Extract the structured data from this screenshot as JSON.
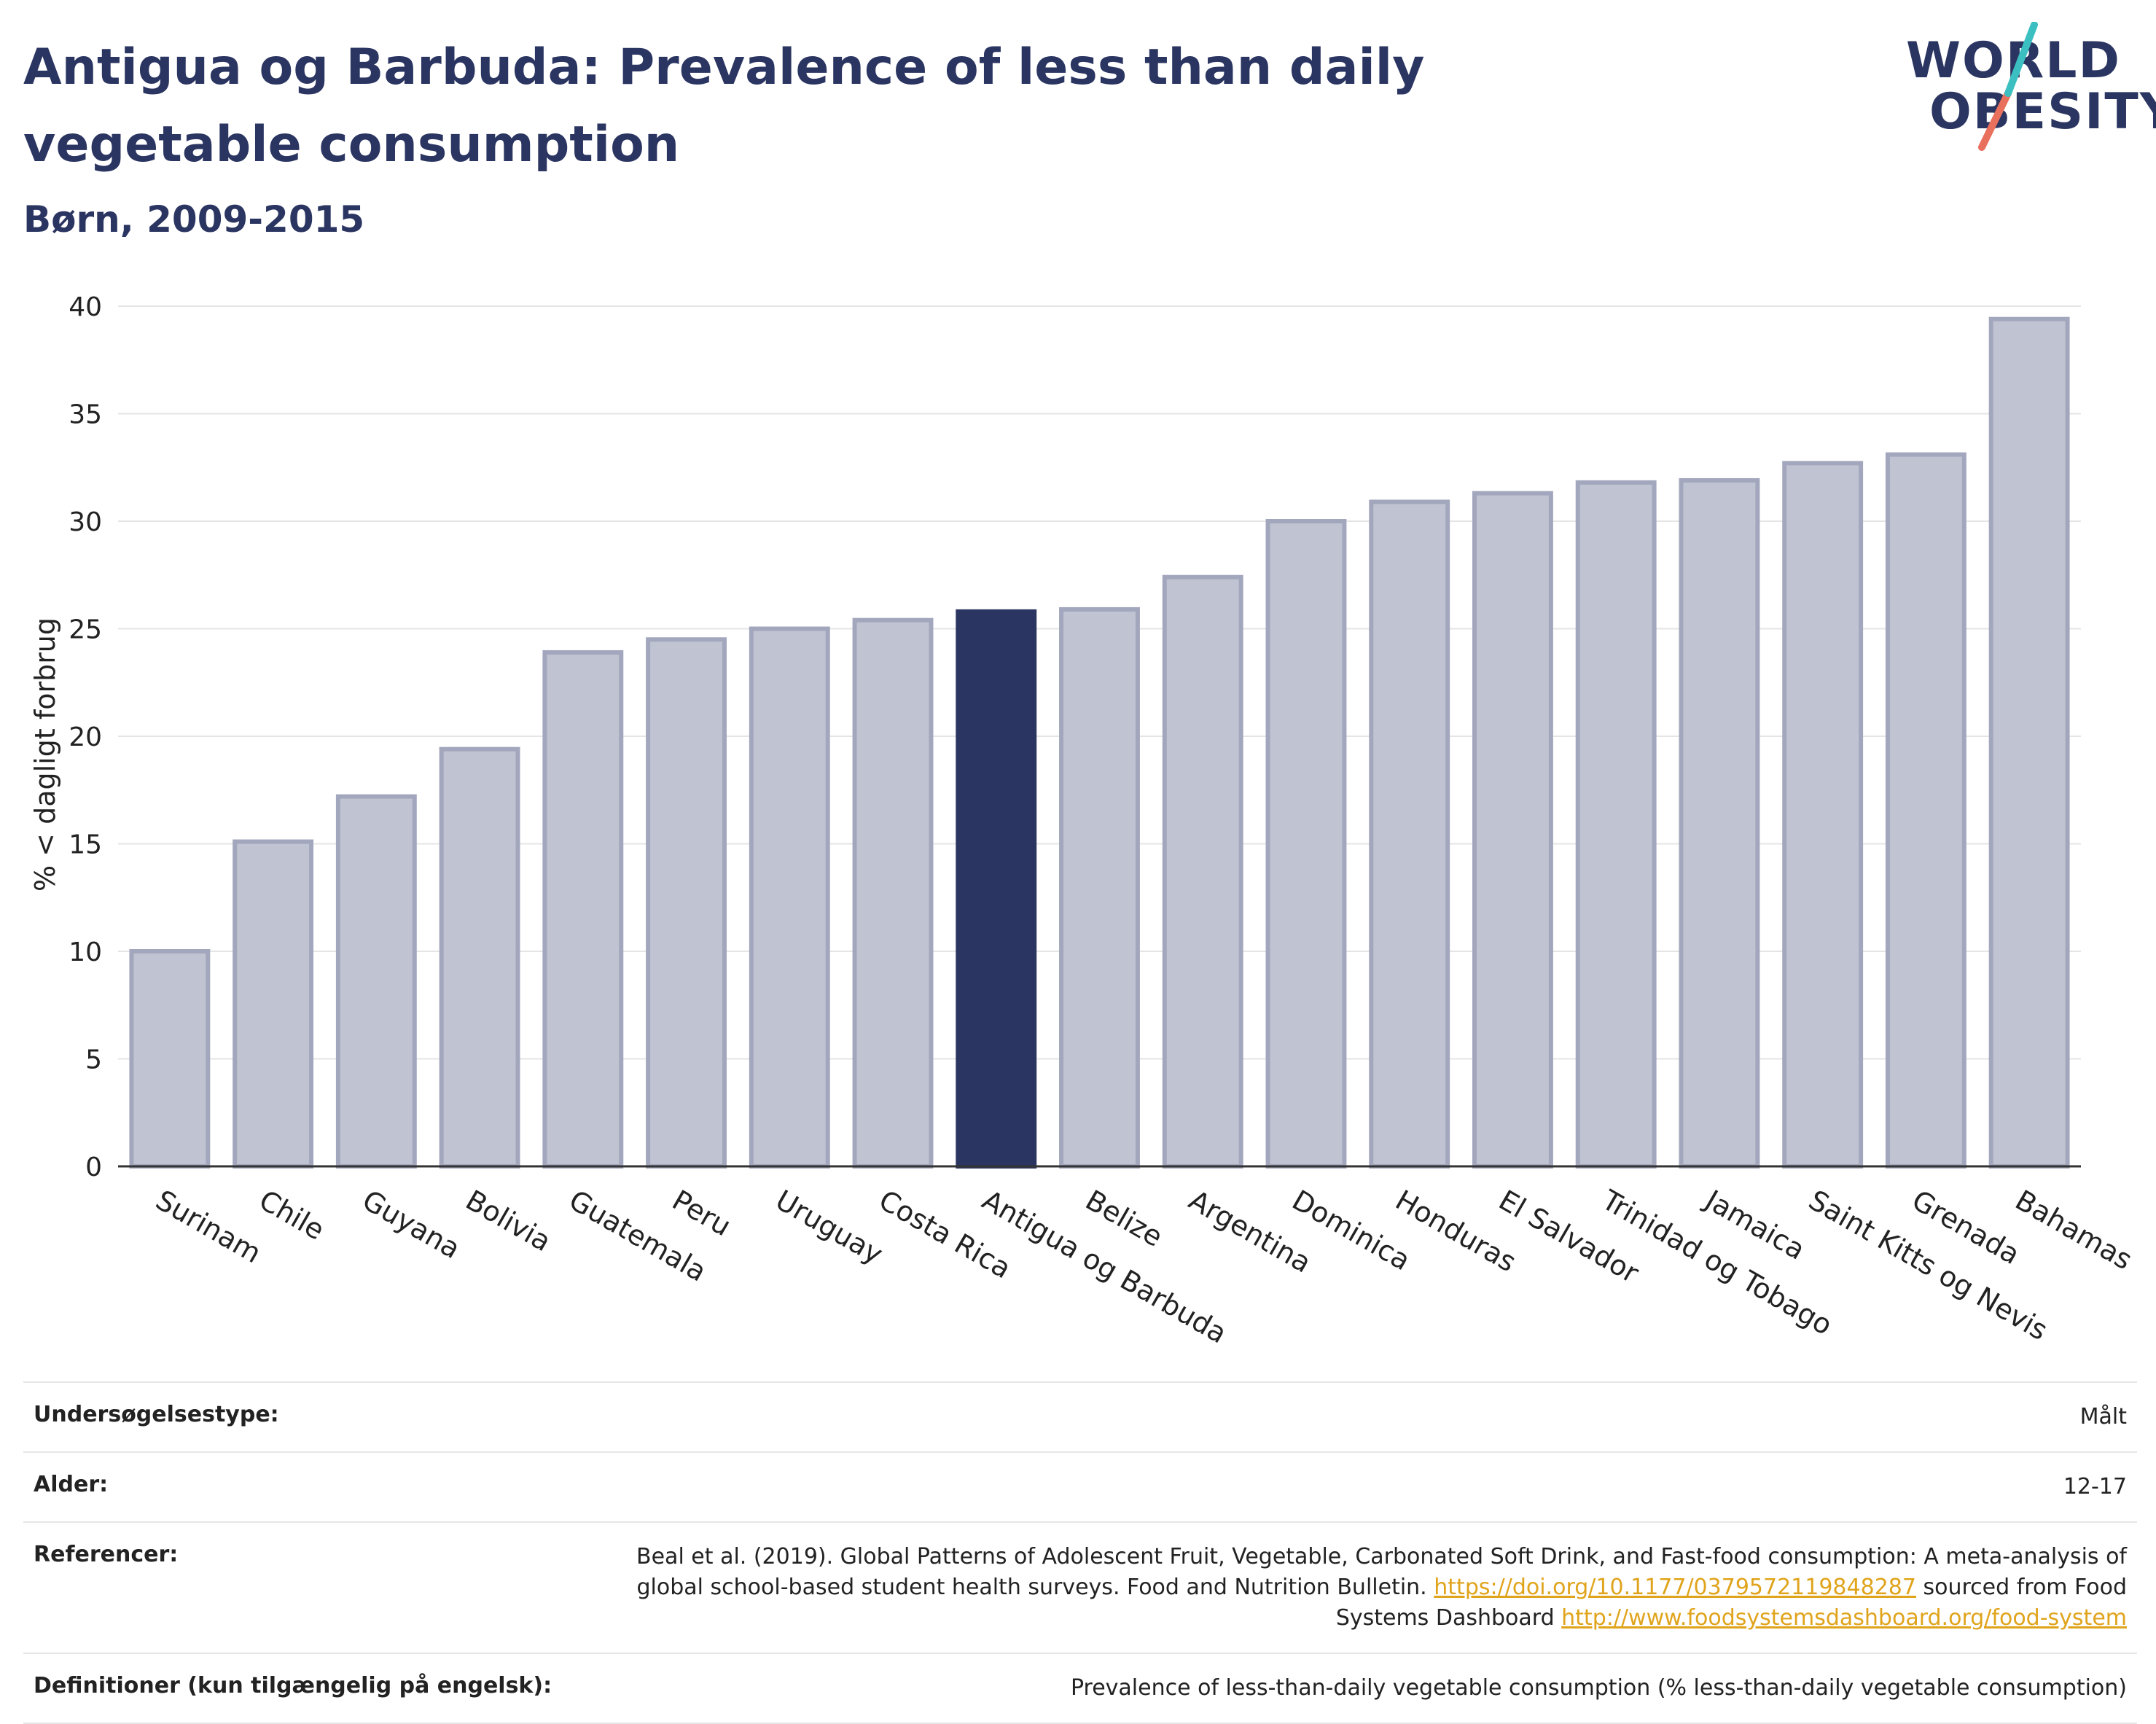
{
  "title": "Antigua og Barbuda: Prevalence of less than daily vegetable consumption",
  "subtitle": "Børn, 2009-2015",
  "logo": {
    "line1": "WORLD",
    "line2": "OBESITY",
    "accent_teal": "#3bbfc1",
    "accent_coral": "#e8705d"
  },
  "colors": {
    "highlight": "#2b3561",
    "bar": "#c0c3d1",
    "bar_border": "#a3a7bd",
    "text": "#2b3561"
  },
  "chart_data": {
    "type": "bar",
    "title": "Antigua og Barbuda: Prevalence of less than daily vegetable consumption",
    "subtitle": "Børn, 2009-2015",
    "xlabel": "",
    "ylabel": "% < dagligt forbrug",
    "ylim": [
      0,
      40
    ],
    "yticks": [
      0,
      5,
      10,
      15,
      20,
      25,
      30,
      35,
      40
    ],
    "grid": true,
    "highlight": "Antigua og Barbuda",
    "categories": [
      "Surinam",
      "Chile",
      "Guyana",
      "Bolivia",
      "Guatemala",
      "Peru",
      "Uruguay",
      "Costa Rica",
      "Antigua og Barbuda",
      "Belize",
      "Argentina",
      "Dominica",
      "Honduras",
      "El Salvador",
      "Trinidad og Tobago",
      "Jamaica",
      "Saint Kitts og Nevis",
      "Grenada",
      "Bahamas"
    ],
    "values": [
      10.0,
      15.1,
      17.2,
      19.4,
      23.9,
      24.5,
      25.0,
      25.4,
      25.8,
      25.9,
      27.4,
      30.0,
      30.9,
      31.3,
      31.8,
      31.9,
      32.7,
      33.1,
      39.4
    ]
  },
  "meta": {
    "survey_type_label": "Undersøgelsestype:",
    "survey_type_value": "Målt",
    "age_label": "Alder:",
    "age_value": "12-17",
    "references_label": "Referencer:",
    "references_text_1": "Beal et al. (2019). Global Patterns of Adolescent Fruit, Vegetable, Carbonated Soft Drink, and Fast-food consumption: A meta-analysis of global school-based student health surveys. Food and Nutrition Bulletin.",
    "references_link_1": "https://doi.org/10.1177/0379572119848287",
    "references_text_2": "sourced from Food Systems Dashboard",
    "references_link_2": "http://www.foodsystemsdashboard.org/food-system",
    "definitions_label": "Definitioner (kun tilgængelig på engelsk):",
    "definitions_value": "Prevalence of less-than-daily vegetable consumption (% less-than-daily vegetable consumption)"
  }
}
